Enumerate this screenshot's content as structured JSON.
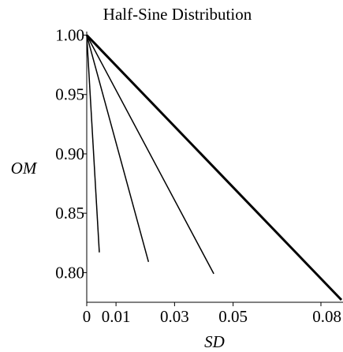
{
  "chart_data": {
    "type": "line",
    "title": "Half-Sine Distribution",
    "xlabel": "SD",
    "ylabel": "OM",
    "xlim": [
      0,
      0.087
    ],
    "ylim": [
      0.775,
      1.003
    ],
    "x_ticks": [
      0,
      0.01,
      0.03,
      0.05,
      0.08
    ],
    "x_tick_labels": [
      "0",
      "0.01",
      "0.03",
      "0.05",
      "0.08"
    ],
    "y_ticks": [
      0.8,
      0.85,
      0.9,
      0.95,
      1.0
    ],
    "y_tick_labels": [
      "0.80",
      "0.85",
      "0.90",
      "0.95",
      "1.00"
    ],
    "grid": false,
    "series": [
      {
        "x": [
          0,
          0.0043
        ],
        "y": [
          1.0,
          0.817
        ],
        "width": "thin"
      },
      {
        "x": [
          0,
          0.0211
        ],
        "y": [
          1.0,
          0.809
        ],
        "width": "thin"
      },
      {
        "x": [
          0,
          0.0434
        ],
        "y": [
          1.0,
          0.799
        ],
        "width": "thin"
      },
      {
        "x": [
          0,
          0.087
        ],
        "y": [
          1.0,
          0.777
        ],
        "width": "thick"
      }
    ]
  }
}
